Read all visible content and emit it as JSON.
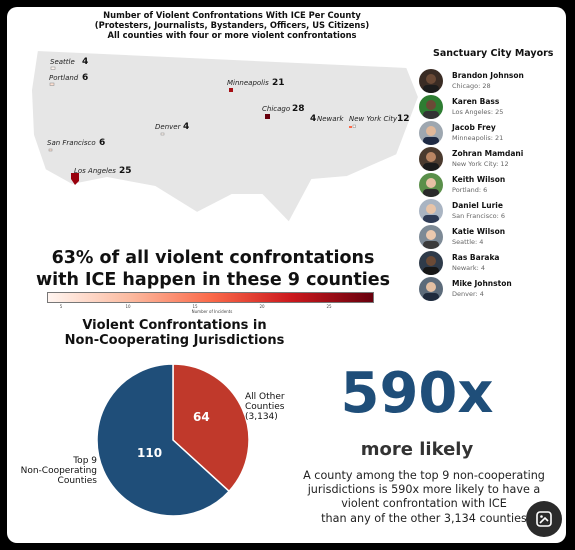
{
  "map": {
    "title_lines": [
      "Number of Violent Confrontations With ICE Per County",
      "(Protesters, Journalists, Bystanders, Officers, US Citizens)",
      "All counties with four or more violent confrontations"
    ],
    "cities": [
      {
        "name": "Seattle",
        "count": "4"
      },
      {
        "name": "Portland",
        "count": "6"
      },
      {
        "name": "Minneapolis",
        "count": "21"
      },
      {
        "name": "Chicago",
        "count": "28"
      },
      {
        "name": "Newark",
        "count": "4"
      },
      {
        "name": "New York City",
        "count": "12"
      },
      {
        "name": "Denver",
        "count": "4"
      },
      {
        "name": "San Francisco",
        "count": "6"
      },
      {
        "name": "Los Angeles",
        "count": "25"
      }
    ],
    "headline_lines": [
      "63% of all violent confrontations",
      "with ICE happen in these 9 counties"
    ],
    "colorbar": {
      "ticks": [
        "5",
        "10",
        "15",
        "20",
        "25"
      ],
      "label": "Number of Incidents",
      "range": [
        4,
        28
      ],
      "colors": [
        "#fff5f0",
        "#fcbba1",
        "#fb6a4a",
        "#cb181d",
        "#67000d"
      ]
    }
  },
  "mayors": {
    "title": "Sanctuary City Mayors",
    "items": [
      {
        "name": "Brandon Johnson",
        "city": "Chicago: 28"
      },
      {
        "name": "Karen Bass",
        "city": "Los Angeles: 25"
      },
      {
        "name": "Jacob Frey",
        "city": "Minneapolis: 21"
      },
      {
        "name": "Zohran Mamdani",
        "city": "New York City: 12"
      },
      {
        "name": "Keith Wilson",
        "city": "Portland: 6"
      },
      {
        "name": "Daniel Lurie",
        "city": "San Francisco: 6"
      },
      {
        "name": "Katie Wilson",
        "city": "Seattle: 4"
      },
      {
        "name": "Ras Baraka",
        "city": "Newark: 4"
      },
      {
        "name": "Mike Johnston",
        "city": "Denver: 4"
      }
    ]
  },
  "pie": {
    "title_lines": [
      "Violent Confrontations in",
      "Non-Cooperating Jurisdictions"
    ]
  },
  "stat": {
    "big": "590x",
    "sub": "more likely",
    "explain_lines": [
      "A county among the top 9 non-cooperating",
      "jurisdictions is 590x more likely to have a",
      "violent confrontation with ICE",
      "than any of the other 3,134 counties"
    ]
  },
  "colors": {
    "pie_blue": "#1f4e79",
    "pie_red": "#c0392b",
    "accent": "#1f4e79"
  },
  "chart_data": [
    {
      "type": "bar",
      "title": "Number of Violent Confrontations With ICE Per County",
      "categories": [
        "Seattle",
        "Portland",
        "Minneapolis",
        "Chicago",
        "Newark",
        "New York City",
        "Denver",
        "San Francisco",
        "Los Angeles"
      ],
      "values": [
        4,
        6,
        21,
        28,
        4,
        12,
        4,
        6,
        25
      ]
    },
    {
      "type": "pie",
      "title": "Violent Confrontations in Non-Cooperating Jurisdictions",
      "slices": [
        {
          "label": "Top 9 Non-Cooperating Counties",
          "value": 110
        },
        {
          "label": "All Other Counties (3,134)",
          "value": 64
        }
      ],
      "labels": {
        "top_lines": [
          "Top 9",
          "Non-Cooperating",
          "Counties"
        ],
        "other_lines": [
          "All Other",
          "Counties",
          "(3,134)"
        ]
      }
    }
  ]
}
